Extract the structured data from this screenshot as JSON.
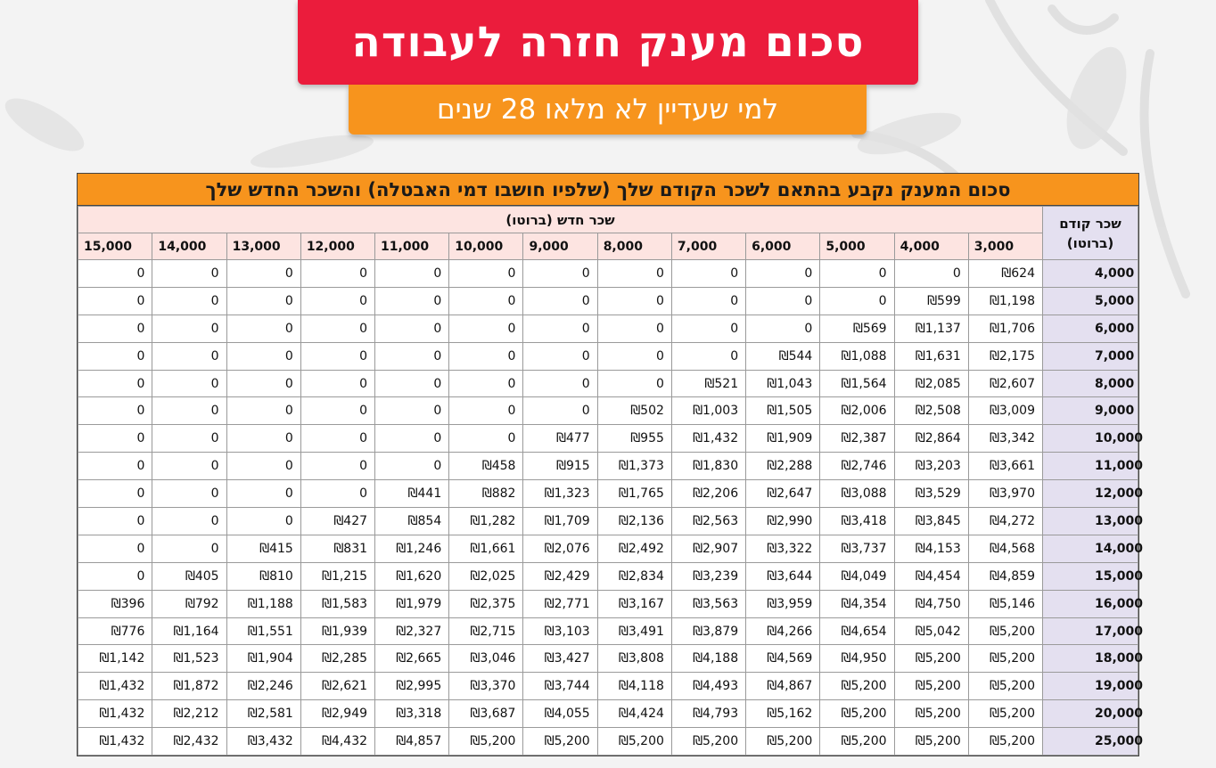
{
  "header": {
    "title": "סכום מענק חזרה לעבודה",
    "subtitle": "למי שעדיין לא מלאו 28 שנים"
  },
  "table": {
    "caption": "סכום המענק נקבע בהתאם לשכר הקודם שלך (שלפיו חושבו דמי האבטלה) והשכר החדש שלך",
    "row_header_label_line1": "שכר קודם",
    "row_header_label_line2": "(ברוטו)",
    "new_salary_label": "שכר חדש (ברוטו)",
    "columns": [
      "3,000",
      "4,000",
      "5,000",
      "6,000",
      "7,000",
      "8,000",
      "9,000",
      "10,000",
      "11,000",
      "12,000",
      "13,000",
      "14,000",
      "15,000"
    ],
    "rows": [
      {
        "prev": "4,000",
        "cells": [
          "₪624",
          "0",
          "0",
          "0",
          "0",
          "0",
          "0",
          "0",
          "0",
          "0",
          "0",
          "0",
          "0"
        ]
      },
      {
        "prev": "5,000",
        "cells": [
          "₪1,198",
          "₪599",
          "0",
          "0",
          "0",
          "0",
          "0",
          "0",
          "0",
          "0",
          "0",
          "0",
          "0"
        ]
      },
      {
        "prev": "6,000",
        "cells": [
          "₪1,706",
          "₪1,137",
          "₪569",
          "0",
          "0",
          "0",
          "0",
          "0",
          "0",
          "0",
          "0",
          "0",
          "0"
        ]
      },
      {
        "prev": "7,000",
        "cells": [
          "₪2,175",
          "₪1,631",
          "₪1,088",
          "₪544",
          "0",
          "0",
          "0",
          "0",
          "0",
          "0",
          "0",
          "0",
          "0"
        ]
      },
      {
        "prev": "8,000",
        "cells": [
          "₪2,607",
          "₪2,085",
          "₪1,564",
          "₪1,043",
          "₪521",
          "0",
          "0",
          "0",
          "0",
          "0",
          "0",
          "0",
          "0"
        ]
      },
      {
        "prev": "9,000",
        "cells": [
          "₪3,009",
          "₪2,508",
          "₪2,006",
          "₪1,505",
          "₪1,003",
          "₪502",
          "0",
          "0",
          "0",
          "0",
          "0",
          "0",
          "0"
        ]
      },
      {
        "prev": "10,000",
        "cells": [
          "₪3,342",
          "₪2,864",
          "₪2,387",
          "₪1,909",
          "₪1,432",
          "₪955",
          "₪477",
          "0",
          "0",
          "0",
          "0",
          "0",
          "0"
        ]
      },
      {
        "prev": "11,000",
        "cells": [
          "₪3,661",
          "₪3,203",
          "₪2,746",
          "₪2,288",
          "₪1,830",
          "₪1,373",
          "₪915",
          "₪458",
          "0",
          "0",
          "0",
          "0",
          "0"
        ]
      },
      {
        "prev": "12,000",
        "cells": [
          "₪3,970",
          "₪3,529",
          "₪3,088",
          "₪2,647",
          "₪2,206",
          "₪1,765",
          "₪1,323",
          "₪882",
          "₪441",
          "0",
          "0",
          "0",
          "0"
        ]
      },
      {
        "prev": "13,000",
        "cells": [
          "₪4,272",
          "₪3,845",
          "₪3,418",
          "₪2,990",
          "₪2,563",
          "₪2,136",
          "₪1,709",
          "₪1,282",
          "₪854",
          "₪427",
          "0",
          "0",
          "0"
        ]
      },
      {
        "prev": "14,000",
        "cells": [
          "₪4,568",
          "₪4,153",
          "₪3,737",
          "₪3,322",
          "₪2,907",
          "₪2,492",
          "₪2,076",
          "₪1,661",
          "₪1,246",
          "₪831",
          "₪415",
          "0",
          "0"
        ]
      },
      {
        "prev": "15,000",
        "cells": [
          "₪4,859",
          "₪4,454",
          "₪4,049",
          "₪3,644",
          "₪3,239",
          "₪2,834",
          "₪2,429",
          "₪2,025",
          "₪1,620",
          "₪1,215",
          "₪810",
          "₪405",
          "0"
        ]
      },
      {
        "prev": "16,000",
        "cells": [
          "₪5,146",
          "₪4,750",
          "₪4,354",
          "₪3,959",
          "₪3,563",
          "₪3,167",
          "₪2,771",
          "₪2,375",
          "₪1,979",
          "₪1,583",
          "₪1,188",
          "₪792",
          "₪396"
        ]
      },
      {
        "prev": "17,000",
        "cells": [
          "₪5,200",
          "₪5,042",
          "₪4,654",
          "₪4,266",
          "₪3,879",
          "₪3,491",
          "₪3,103",
          "₪2,715",
          "₪2,327",
          "₪1,939",
          "₪1,551",
          "₪1,164",
          "₪776"
        ]
      },
      {
        "prev": "18,000",
        "cells": [
          "₪5,200",
          "₪5,200",
          "₪4,950",
          "₪4,569",
          "₪4,188",
          "₪3,808",
          "₪3,427",
          "₪3,046",
          "₪2,665",
          "₪2,285",
          "₪1,904",
          "₪1,523",
          "₪1,142"
        ]
      },
      {
        "prev": "19,000",
        "cells": [
          "₪5,200",
          "₪5,200",
          "₪5,200",
          "₪4,867",
          "₪4,493",
          "₪4,118",
          "₪3,744",
          "₪3,370",
          "₪2,995",
          "₪2,621",
          "₪2,246",
          "₪1,872",
          "₪1,432"
        ]
      },
      {
        "prev": "20,000",
        "cells": [
          "₪5,200",
          "₪5,200",
          "₪5,200",
          "₪5,162",
          "₪4,793",
          "₪4,424",
          "₪4,055",
          "₪3,687",
          "₪3,318",
          "₪2,949",
          "₪2,581",
          "₪2,212",
          "₪1,432"
        ]
      },
      {
        "prev": "25,000",
        "cells": [
          "₪5,200",
          "₪5,200",
          "₪5,200",
          "₪5,200",
          "₪5,200",
          "₪5,200",
          "₪5,200",
          "₪5,200",
          "₪4,857",
          "₪4,432",
          "₪3,432",
          "₪2,432",
          "₪1,432"
        ]
      }
    ]
  },
  "colors": {
    "title_bg": "#eb1c3c",
    "subtitle_bg": "#f7941d",
    "caption_bg": "#f7941d",
    "prev_salary_bg": "#e4e0f0",
    "new_salary_bg": "#fde4e1"
  }
}
